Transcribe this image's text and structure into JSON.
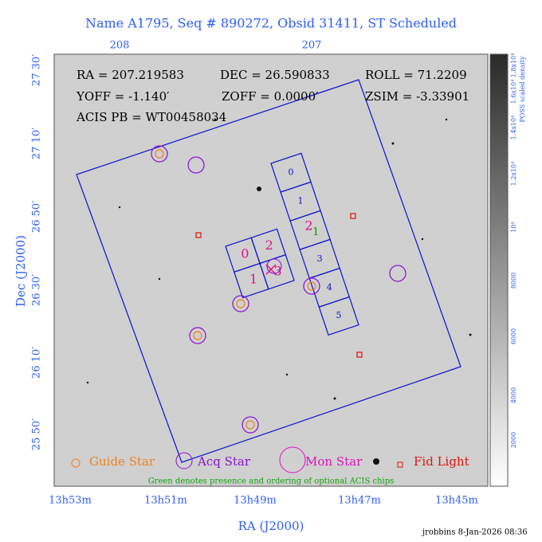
{
  "header": {
    "title": "Name A1795, Seq # 890272, Obsid 31411, ST Scheduled"
  },
  "axes": {
    "top_ticks": [
      "208",
      "207"
    ],
    "left_ticks": [
      "27 30′",
      "27 10′",
      "26 50′",
      "26 30′",
      "26 10′",
      "25 50′"
    ],
    "bottom_ticks": [
      "13h53m",
      "13h51m",
      "13h49m",
      "13h47m",
      "13h45m"
    ],
    "x_label": "RA (J2000)",
    "y_label": "Dec (J2000)"
  },
  "info": {
    "ra": "RA = 207.219583",
    "dec": "DEC = 26.590833",
    "roll": "ROLL = 71.2209",
    "yoff": "YOFF =  -1.140′",
    "zoff": "ZOFF =  0.0000′",
    "zsim": "ZSIM = -3.33901",
    "acis_pb": "ACIS PB = WT00458034"
  },
  "acis_s_chips": [
    "0",
    "1",
    "2",
    "3",
    "4",
    "5"
  ],
  "acis_i_chips": [
    "0",
    "2",
    "1",
    "3"
  ],
  "optional_chip": "1",
  "legend": [
    "Guide Star",
    "Acq Star",
    "Mon Star",
    "Fid Light"
  ],
  "note": "Green denotes presence and ordering of optional ACIS chips",
  "colorbar": {
    "label": "POSS scaled density",
    "ticks": [
      "2000",
      "4000",
      "6000",
      "8000",
      "10⁴",
      "1.2x10⁴",
      "1.4x10⁴",
      "1.6x10⁴",
      "1.8x10⁴"
    ]
  },
  "footer": "jrobbins  8-Jan-2026 08:36"
}
